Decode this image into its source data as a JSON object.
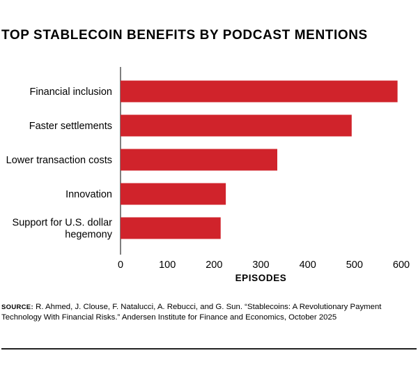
{
  "chart_data": {
    "type": "bar",
    "orientation": "horizontal",
    "title": "TOP STABLECOIN BENEFITS BY PODCAST MENTIONS",
    "categories": [
      [
        "Financial inclusion"
      ],
      [
        "Faster settlements"
      ],
      [
        "Lower transaction costs"
      ],
      [
        "Innovation"
      ],
      [
        "Support for U.S. dollar",
        "hegemony"
      ]
    ],
    "values": [
      592,
      494,
      335,
      225,
      214
    ],
    "xlabel": "EPISODES",
    "xlim": [
      0,
      600
    ],
    "xticks": [
      "0",
      "100",
      "200",
      "300",
      "400",
      "500",
      "600"
    ],
    "bar_color": "#d0232b",
    "grid": false
  },
  "source": {
    "label": "SOURCE:",
    "text": "R. Ahmed, J. Clouse, F. Natalucci, A. Rebucci, and G. Sun. “Stablecoins: A Revolutionary Payment Technology With Financial Risks.” Andersen Institute for Finance and Economics, October 2025"
  }
}
